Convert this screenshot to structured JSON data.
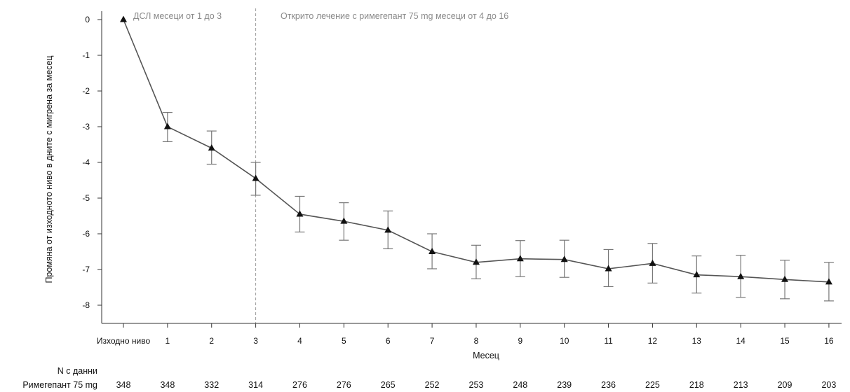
{
  "chart_data": {
    "type": "line",
    "ylabel": "Промяна от изходното ниво в дните с мигрена за месец",
    "xlabel": "Месец",
    "x_categories": [
      "Изходно ниво",
      "1",
      "2",
      "3",
      "4",
      "5",
      "6",
      "7",
      "8",
      "9",
      "10",
      "11",
      "12",
      "13",
      "14",
      "15",
      "16"
    ],
    "y_ticks": [
      "0",
      "-1",
      "-2",
      "-3",
      "-4",
      "-5",
      "-6",
      "-7",
      "-8"
    ],
    "ylim": [
      -8.5,
      0.2
    ],
    "series": [
      {
        "marker": "triangle",
        "values": [
          0,
          -3.0,
          -3.6,
          -4.45,
          -5.45,
          -5.65,
          -5.9,
          -6.5,
          -6.8,
          -6.7,
          -6.72,
          -6.98,
          -6.83,
          -7.15,
          -7.2,
          -7.28,
          -7.35
        ],
        "error_low": [
          null,
          -3.42,
          -4.05,
          -4.92,
          -5.95,
          -6.18,
          -6.42,
          -6.98,
          -7.26,
          -7.2,
          -7.22,
          -7.48,
          -7.38,
          -7.66,
          -7.78,
          -7.82,
          -7.88
        ],
        "error_high": [
          null,
          -2.6,
          -3.12,
          -4.0,
          -4.95,
          -5.13,
          -5.36,
          -6.0,
          -6.32,
          -6.19,
          -6.18,
          -6.44,
          -6.27,
          -6.62,
          -6.6,
          -6.74,
          -6.8
        ]
      }
    ],
    "annotations": {
      "left_phase": "ДСЛ месеци от 1 до 3",
      "right_phase": "Открито лечение с римегепант 75 mg месеци от 4 до 16",
      "divider_after": "3"
    },
    "n_table": {
      "header": "N с данни",
      "row_label": "Римегепант 75 mg",
      "values": [
        "348",
        "348",
        "332",
        "314",
        "276",
        "276",
        "265",
        "252",
        "253",
        "248",
        "239",
        "236",
        "225",
        "218",
        "213",
        "209",
        "203"
      ]
    },
    "colors": {
      "line": "#555555",
      "marker": "#111111",
      "error": "#777777",
      "divider": "#999999",
      "axis": "#333333",
      "annotation": "#8a8a8a"
    },
    "grid": false
  }
}
